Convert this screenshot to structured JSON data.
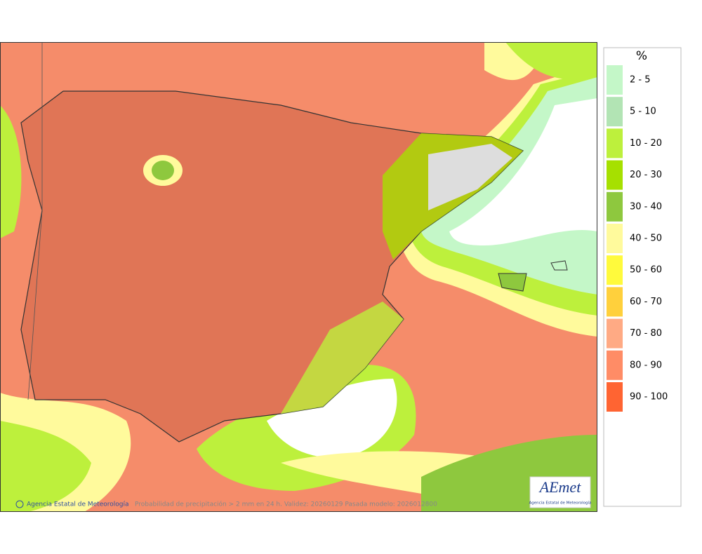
{
  "legend": {
    "title": "%",
    "items": [
      {
        "label": "2 - 5",
        "color": "#c4f7c8"
      },
      {
        "label": "5 - 10",
        "color": "#b2e4b4"
      },
      {
        "label": "10 - 20",
        "color": "#bdf03c"
      },
      {
        "label": "20 - 30",
        "color": "#a6e000"
      },
      {
        "label": "30 - 40",
        "color": "#8ec83e"
      },
      {
        "label": "40 - 50",
        "color": "#fffa9c"
      },
      {
        "label": "50 - 60",
        "color": "#fffa3c"
      },
      {
        "label": "60 - 70",
        "color": "#ffd03c"
      },
      {
        "label": "70 - 80",
        "color": "#ffaa84"
      },
      {
        "label": "80 - 90",
        "color": "#ff8c66"
      },
      {
        "label": "90 - 100",
        "color": "#ff6432"
      }
    ]
  },
  "map": {
    "credit": "Agencia Estatal de Meteorología",
    "caption": "Probabilidad de precipitación > 2 mm en 24 h. Validez: 20260129 Pasada modelo: 2026012800",
    "logo": "AEmet",
    "logo_subtitle": "Agencia Estatal de Meteorología"
  }
}
